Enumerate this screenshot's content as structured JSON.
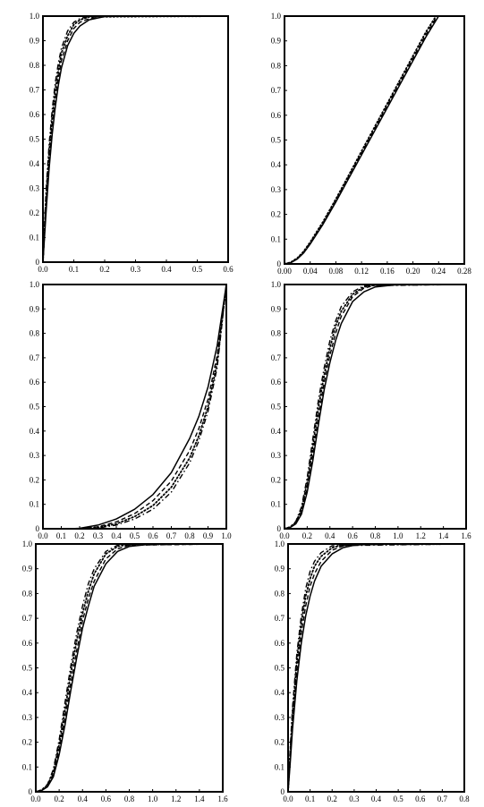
{
  "chart_data": [
    {
      "type": "line",
      "title": "",
      "xlabel": "",
      "ylabel": "",
      "xlim": [
        0,
        0.6
      ],
      "ylim": [
        0,
        1
      ],
      "grid": false,
      "x_tick_labels": [
        "0.0",
        "0.1",
        "0.2",
        "0.3",
        "0.4",
        "0.5",
        "0.6"
      ],
      "y_tick_labels": [
        "0",
        "0.1",
        "0.2",
        "0.3",
        "0.4",
        "0.5",
        "0.6",
        "0.7",
        "0.8",
        "0.9",
        "1.0"
      ],
      "series": [
        {
          "style": "solid",
          "x": [
            0,
            0.01,
            0.02,
            0.03,
            0.04,
            0.05,
            0.06,
            0.08,
            0.1,
            0.12,
            0.15,
            0.2,
            0.25,
            0.6
          ],
          "y": [
            0,
            0.2,
            0.38,
            0.52,
            0.63,
            0.72,
            0.79,
            0.88,
            0.93,
            0.96,
            0.985,
            0.998,
            1.0,
            1.0
          ]
        },
        {
          "style": "dashed",
          "x": [
            0,
            0.01,
            0.02,
            0.03,
            0.04,
            0.05,
            0.06,
            0.08,
            0.1,
            0.12,
            0.15,
            0.2,
            0.6
          ],
          "y": [
            0,
            0.23,
            0.41,
            0.55,
            0.66,
            0.75,
            0.82,
            0.9,
            0.95,
            0.975,
            0.99,
            1.0,
            1.0
          ]
        },
        {
          "style": "dotted",
          "x": [
            0,
            0.01,
            0.02,
            0.03,
            0.04,
            0.05,
            0.06,
            0.08,
            0.1,
            0.12,
            0.15,
            0.6
          ],
          "y": [
            0,
            0.26,
            0.45,
            0.59,
            0.7,
            0.78,
            0.85,
            0.92,
            0.965,
            0.985,
            0.997,
            1.0
          ]
        },
        {
          "style": "dashdot",
          "x": [
            0,
            0.01,
            0.02,
            0.03,
            0.04,
            0.05,
            0.06,
            0.08,
            0.1,
            0.12,
            0.15,
            0.6
          ],
          "y": [
            0,
            0.29,
            0.48,
            0.62,
            0.73,
            0.81,
            0.87,
            0.94,
            0.975,
            0.99,
            0.999,
            1.0
          ]
        }
      ]
    },
    {
      "type": "line",
      "title": "",
      "xlabel": "",
      "ylabel": "",
      "xlim": [
        0,
        0.28
      ],
      "ylim": [
        0,
        1
      ],
      "grid": false,
      "x_tick_labels": [
        "0.00",
        "0.04",
        "0.08",
        "0.12",
        "0.16",
        "0.20",
        "0.24",
        "0.28"
      ],
      "y_tick_labels": [
        "0",
        "0.1",
        "0.2",
        "0.3",
        "0.4",
        "0.5",
        "0.6",
        "0.7",
        "0.8",
        "0.9",
        "1.0"
      ],
      "series": [
        {
          "style": "solid",
          "x": [
            0,
            0.01,
            0.02,
            0.03,
            0.04,
            0.06,
            0.08,
            0.1,
            0.12,
            0.14,
            0.16,
            0.18,
            0.2,
            0.22,
            0.24,
            0.28
          ],
          "y": [
            0,
            0.005,
            0.02,
            0.045,
            0.08,
            0.16,
            0.25,
            0.345,
            0.44,
            0.535,
            0.63,
            0.725,
            0.82,
            0.915,
            1.0,
            1.0
          ]
        },
        {
          "style": "dashed",
          "x": [
            0,
            0.01,
            0.02,
            0.03,
            0.04,
            0.06,
            0.08,
            0.1,
            0.12,
            0.14,
            0.16,
            0.18,
            0.2,
            0.22,
            0.238,
            0.28
          ],
          "y": [
            0,
            0.006,
            0.022,
            0.048,
            0.084,
            0.165,
            0.256,
            0.352,
            0.448,
            0.544,
            0.64,
            0.735,
            0.83,
            0.925,
            1.0,
            1.0
          ]
        },
        {
          "style": "dotted",
          "x": [
            0,
            0.01,
            0.02,
            0.03,
            0.04,
            0.06,
            0.08,
            0.1,
            0.12,
            0.14,
            0.16,
            0.18,
            0.2,
            0.22,
            0.236,
            0.28
          ],
          "y": [
            0,
            0.007,
            0.024,
            0.051,
            0.088,
            0.17,
            0.262,
            0.358,
            0.455,
            0.551,
            0.647,
            0.743,
            0.839,
            0.935,
            1.0,
            1.0
          ]
        }
      ]
    },
    {
      "type": "line",
      "title": "",
      "xlabel": "",
      "ylabel": "",
      "xlim": [
        0,
        1
      ],
      "ylim": [
        0,
        1
      ],
      "grid": false,
      "x_tick_labels": [
        "0.0",
        "0.1",
        "0.2",
        "0.3",
        "0.4",
        "0.5",
        "0.6",
        "0.7",
        "0.8",
        "0.9",
        "1.0"
      ],
      "y_tick_labels": [
        "0",
        "0.1",
        "0.2",
        "0.3",
        "0.4",
        "0.5",
        "0.6",
        "0.7",
        "0.8",
        "0.9",
        "1.0"
      ],
      "series": [
        {
          "style": "solid",
          "x": [
            0.15,
            0.2,
            0.3,
            0.4,
            0.5,
            0.6,
            0.7,
            0.8,
            0.85,
            0.9,
            0.95,
            1.0
          ],
          "y": [
            0,
            0.002,
            0.015,
            0.04,
            0.08,
            0.14,
            0.23,
            0.37,
            0.46,
            0.58,
            0.75,
            1.0
          ]
        },
        {
          "style": "dashed",
          "x": [
            0.2,
            0.3,
            0.4,
            0.5,
            0.6,
            0.7,
            0.8,
            0.85,
            0.9,
            0.95,
            1.0
          ],
          "y": [
            0,
            0.008,
            0.028,
            0.062,
            0.115,
            0.195,
            0.32,
            0.41,
            0.53,
            0.71,
            1.0
          ]
        },
        {
          "style": "dotted",
          "x": [
            0.2,
            0.3,
            0.4,
            0.5,
            0.6,
            0.7,
            0.8,
            0.85,
            0.9,
            0.95,
            1.0
          ],
          "y": [
            0,
            0.005,
            0.02,
            0.05,
            0.095,
            0.17,
            0.29,
            0.38,
            0.5,
            0.68,
            1.0
          ]
        },
        {
          "style": "dashdot",
          "x": [
            0.25,
            0.3,
            0.4,
            0.5,
            0.6,
            0.7,
            0.8,
            0.85,
            0.9,
            0.95,
            1.0
          ],
          "y": [
            0,
            0.003,
            0.015,
            0.04,
            0.08,
            0.15,
            0.27,
            0.36,
            0.48,
            0.66,
            1.0
          ]
        }
      ]
    },
    {
      "type": "line",
      "title": "",
      "xlabel": "",
      "ylabel": "",
      "xlim": [
        0,
        1.6
      ],
      "ylim": [
        0,
        1
      ],
      "grid": false,
      "x_tick_labels": [
        "0.0",
        "0.2",
        "0.4",
        "0.6",
        "0.8",
        "1.0",
        "1.2",
        "1.4",
        "1.6"
      ],
      "y_tick_labels": [
        "0",
        "0.1",
        "0.2",
        "0.3",
        "0.4",
        "0.5",
        "0.6",
        "0.7",
        "0.8",
        "0.9",
        "1.0"
      ],
      "series": [
        {
          "style": "solid",
          "x": [
            0,
            0.05,
            0.1,
            0.15,
            0.2,
            0.25,
            0.3,
            0.35,
            0.4,
            0.45,
            0.5,
            0.6,
            0.7,
            0.8,
            1.0,
            1.6
          ],
          "y": [
            0,
            0.005,
            0.02,
            0.06,
            0.15,
            0.28,
            0.43,
            0.57,
            0.68,
            0.77,
            0.84,
            0.93,
            0.97,
            0.99,
            1.0,
            1.0
          ]
        },
        {
          "style": "dashed",
          "x": [
            0,
            0.05,
            0.1,
            0.15,
            0.2,
            0.25,
            0.3,
            0.35,
            0.4,
            0.45,
            0.5,
            0.6,
            0.7,
            0.8,
            1.6
          ],
          "y": [
            0,
            0.006,
            0.023,
            0.07,
            0.17,
            0.31,
            0.46,
            0.6,
            0.71,
            0.8,
            0.87,
            0.95,
            0.985,
            0.997,
            1.0
          ]
        },
        {
          "style": "dotted",
          "x": [
            0,
            0.05,
            0.1,
            0.15,
            0.2,
            0.25,
            0.3,
            0.35,
            0.4,
            0.45,
            0.5,
            0.6,
            0.7,
            0.8,
            1.6
          ],
          "y": [
            0,
            0.007,
            0.026,
            0.08,
            0.19,
            0.34,
            0.5,
            0.63,
            0.74,
            0.83,
            0.89,
            0.96,
            0.99,
            0.999,
            1.0
          ]
        },
        {
          "style": "dashdot",
          "x": [
            0,
            0.05,
            0.1,
            0.15,
            0.2,
            0.25,
            0.3,
            0.35,
            0.4,
            0.45,
            0.5,
            0.6,
            0.7,
            1.6
          ],
          "y": [
            0,
            0.008,
            0.03,
            0.09,
            0.21,
            0.37,
            0.53,
            0.66,
            0.77,
            0.85,
            0.91,
            0.97,
            0.995,
            1.0
          ]
        }
      ]
    },
    {
      "type": "line",
      "title": "",
      "xlabel": "",
      "ylabel": "",
      "xlim": [
        0,
        1.6
      ],
      "ylim": [
        0,
        1
      ],
      "grid": false,
      "x_tick_labels": [
        "0.0",
        "0.2",
        "0.4",
        "0.6",
        "0.8",
        "1.0",
        "1.2",
        "1.4",
        "1.6"
      ],
      "y_tick_labels": [
        "0",
        "0.1",
        "0.2",
        "0.3",
        "0.4",
        "0.5",
        "0.6",
        "0.7",
        "0.8",
        "0.9",
        "1.0"
      ],
      "series": [
        {
          "style": "solid",
          "x": [
            0,
            0.05,
            0.1,
            0.15,
            0.2,
            0.25,
            0.3,
            0.35,
            0.4,
            0.45,
            0.5,
            0.6,
            0.7,
            0.8,
            1.0,
            1.6
          ],
          "y": [
            0,
            0.005,
            0.02,
            0.06,
            0.15,
            0.27,
            0.41,
            0.54,
            0.66,
            0.75,
            0.83,
            0.92,
            0.97,
            0.99,
            1.0,
            1.0
          ]
        },
        {
          "style": "dashed",
          "x": [
            0,
            0.05,
            0.1,
            0.15,
            0.2,
            0.25,
            0.3,
            0.35,
            0.4,
            0.45,
            0.5,
            0.6,
            0.7,
            0.8,
            1.6
          ],
          "y": [
            0,
            0.006,
            0.023,
            0.07,
            0.17,
            0.3,
            0.44,
            0.57,
            0.69,
            0.78,
            0.85,
            0.94,
            0.98,
            0.995,
            1.0
          ]
        },
        {
          "style": "dotted",
          "x": [
            0,
            0.05,
            0.1,
            0.15,
            0.2,
            0.25,
            0.3,
            0.35,
            0.4,
            0.45,
            0.5,
            0.6,
            0.7,
            0.8,
            1.6
          ],
          "y": [
            0,
            0.007,
            0.026,
            0.08,
            0.19,
            0.33,
            0.48,
            0.61,
            0.72,
            0.81,
            0.88,
            0.96,
            0.99,
            0.999,
            1.0
          ]
        },
        {
          "style": "dashdot",
          "x": [
            0,
            0.05,
            0.1,
            0.15,
            0.2,
            0.25,
            0.3,
            0.35,
            0.4,
            0.45,
            0.5,
            0.6,
            0.7,
            1.6
          ],
          "y": [
            0,
            0.008,
            0.03,
            0.09,
            0.21,
            0.36,
            0.51,
            0.64,
            0.75,
            0.84,
            0.9,
            0.97,
            0.995,
            1.0
          ]
        }
      ]
    },
    {
      "type": "line",
      "title": "",
      "xlabel": "",
      "ylabel": "",
      "xlim": [
        0,
        0.8
      ],
      "ylim": [
        0,
        1
      ],
      "grid": false,
      "x_tick_labels": [
        "0.0",
        "0.1",
        "0.2",
        "0.3",
        "0.4",
        "0.5",
        "0.6",
        "0.7",
        "0.8"
      ],
      "y_tick_labels": [
        "0",
        "0.1",
        "0.2",
        "0.3",
        "0.4",
        "0.5",
        "0.6",
        "0.7",
        "0.8",
        "0.9",
        "1.0"
      ],
      "series": [
        {
          "style": "solid",
          "x": [
            0,
            0.01,
            0.02,
            0.04,
            0.06,
            0.08,
            0.1,
            0.12,
            0.15,
            0.2,
            0.25,
            0.3,
            0.4,
            0.8
          ],
          "y": [
            0,
            0.12,
            0.25,
            0.45,
            0.6,
            0.71,
            0.79,
            0.85,
            0.91,
            0.96,
            0.985,
            0.995,
            1.0,
            1.0
          ]
        },
        {
          "style": "dashed",
          "x": [
            0,
            0.01,
            0.02,
            0.04,
            0.06,
            0.08,
            0.1,
            0.12,
            0.15,
            0.2,
            0.25,
            0.3,
            0.8
          ],
          "y": [
            0,
            0.14,
            0.28,
            0.49,
            0.64,
            0.75,
            0.83,
            0.88,
            0.93,
            0.975,
            0.992,
            0.999,
            1.0
          ]
        },
        {
          "style": "dotted",
          "x": [
            0,
            0.01,
            0.02,
            0.04,
            0.06,
            0.08,
            0.1,
            0.12,
            0.15,
            0.2,
            0.25,
            0.8
          ],
          "y": [
            0,
            0.16,
            0.31,
            0.53,
            0.68,
            0.79,
            0.86,
            0.91,
            0.95,
            0.985,
            0.997,
            1.0
          ]
        },
        {
          "style": "dashdot",
          "x": [
            0,
            0.01,
            0.02,
            0.04,
            0.06,
            0.08,
            0.1,
            0.12,
            0.15,
            0.2,
            0.8
          ],
          "y": [
            0,
            0.18,
            0.34,
            0.56,
            0.71,
            0.82,
            0.89,
            0.93,
            0.965,
            0.993,
            1.0
          ]
        }
      ]
    }
  ]
}
